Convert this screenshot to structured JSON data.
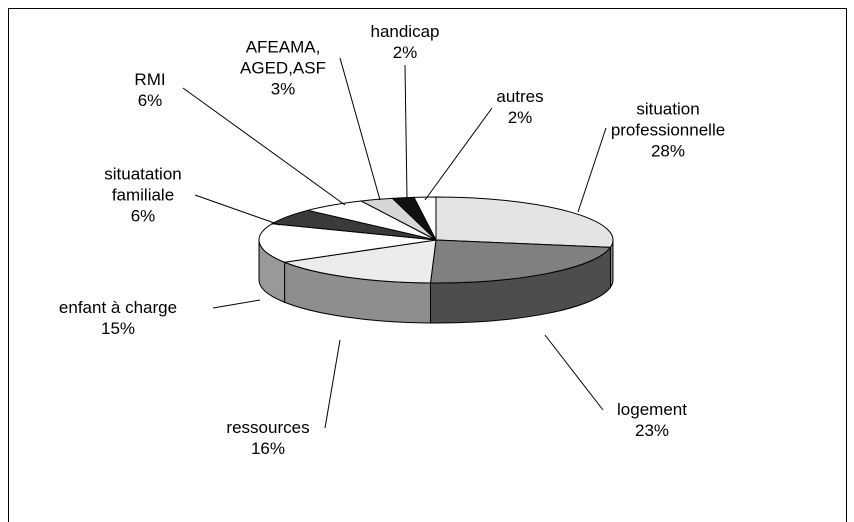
{
  "chart_data": {
    "type": "pie",
    "categories": [
      "situation\nprofessionnelle",
      "logement",
      "ressources",
      "enfant à charge",
      "situatation\nfamiliale",
      "RMI",
      "AFEAMA,\nAGED,ASF",
      "handicap",
      "autres"
    ],
    "values": [
      28,
      23,
      16,
      15,
      6,
      6,
      3,
      2,
      2
    ],
    "value_labels": [
      "28%",
      "23%",
      "16%",
      "15%",
      "6%",
      "6%",
      "3%",
      "2%",
      "2%"
    ],
    "colors": [
      "#e4e4e4",
      "#808080",
      "#ececec",
      "#ffffff",
      "#3a3a3a",
      "#ffffff",
      "#d6d6d6",
      "#111111",
      "#ffffff"
    ]
  }
}
